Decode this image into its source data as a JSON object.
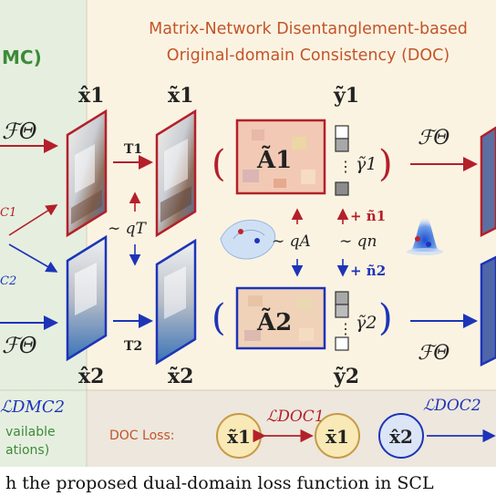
{
  "colors": {
    "left_bg": "#e6efdf",
    "main_bg": "#fbf3e2",
    "bottom_bg": "#ede7dd",
    "green_text": "#3d8a3a",
    "orange_text": "#c2552a",
    "red": "#b3202a",
    "blue": "#1d34b8",
    "node_fill": "#f8e9b6",
    "node_border": "#c69a45"
  },
  "header": {
    "left_fragment": "MC)",
    "title_line1": "Matrix-Network Disentanglement-based",
    "title_line2": "Original-domain Consistency (DOC)"
  },
  "left_panel": {
    "operator_top": "ℱΘ",
    "operator_bottom": "ℱΘ",
    "subscript_top": "C1",
    "subscript_bottom": "C2",
    "loss_label": "ℒDMC2",
    "note_line1": "vailable",
    "note_line2": "ations)"
  },
  "labels": {
    "x1_hat": "x̂1",
    "x2_hat": "x̂2",
    "x1_tilde": "x̃1",
    "x2_tilde": "x̃2",
    "y1": "ỹ1",
    "y2": "ỹ2",
    "T1": "T1",
    "T2": "T2",
    "qT": "∼ qT",
    "qA": "∼ qA",
    "qn": "∼ qn",
    "A1": "Ã1",
    "A2": "Ã2",
    "gamma1": "γ̃1",
    "gamma2": "γ̃2",
    "n1": "+ ñ1",
    "n2": "+ ñ2",
    "F_right_top": "ℱΘ",
    "F_right_bottom": "ℱΘ"
  },
  "loss_row": {
    "doc_loss_label": "DOC Loss:",
    "loss1": "ℒDOC1",
    "loss2": "ℒDOC2",
    "node1": "x̃1",
    "node2": "x̄1",
    "node3": "x̂2"
  },
  "caption": {
    "text": "h the proposed dual-domain loss function in SCL"
  }
}
